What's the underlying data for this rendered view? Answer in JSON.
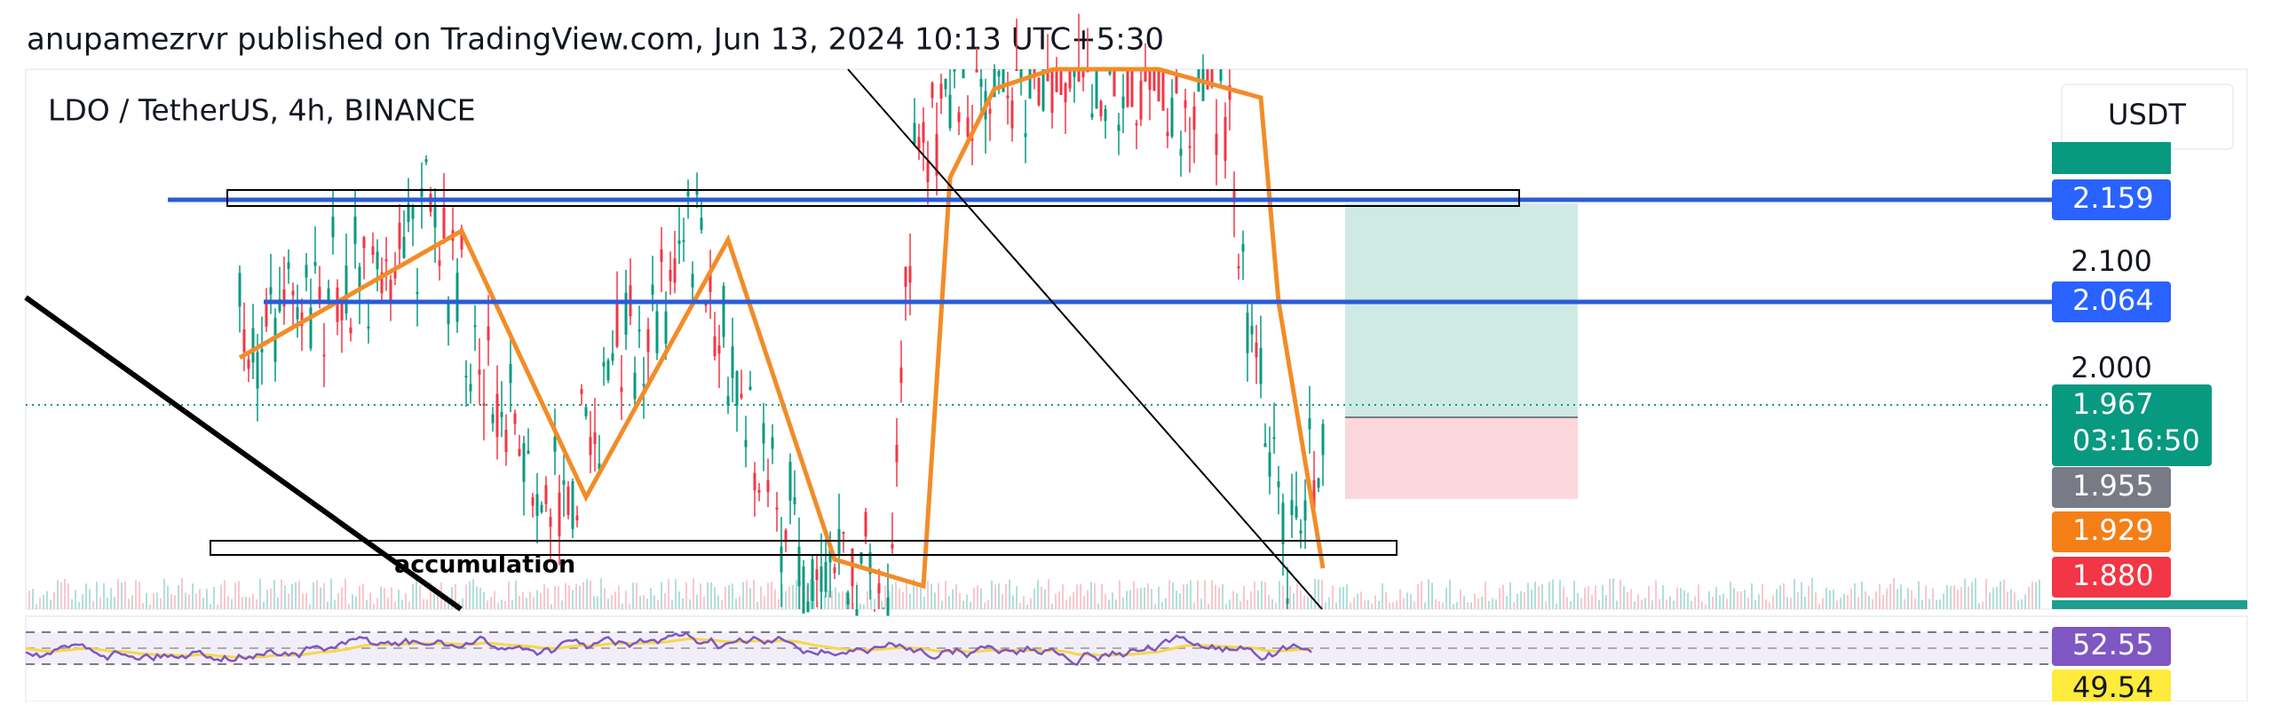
{
  "header": {
    "title": "anupamezrvr published on TradingView.com, Jun 13, 2024 10:13 UTC+5:30"
  },
  "chart": {
    "symbol": "LDO / TetherUS, 4h, BINANCE",
    "currency_button": "USDT",
    "annotation": "accumulation",
    "axis_labels": [
      "2.100",
      "2.000"
    ],
    "price_tags": [
      {
        "text": "2.159",
        "color": "#2962ff"
      },
      {
        "text": "2.064",
        "color": "#2962ff"
      },
      {
        "text": "1.967",
        "sub": "03:16:50",
        "color": "#089981"
      },
      {
        "text": "1.955",
        "color": "#787b86"
      },
      {
        "text": "1.929",
        "color": "#f57f17"
      },
      {
        "text": "1.880",
        "color": "#f23645"
      }
    ]
  },
  "rsi": {
    "tags": [
      {
        "text": "52.55",
        "color": "#7e57c2"
      },
      {
        "text": "49.54",
        "color": "#ffeb3b"
      }
    ]
  }
}
